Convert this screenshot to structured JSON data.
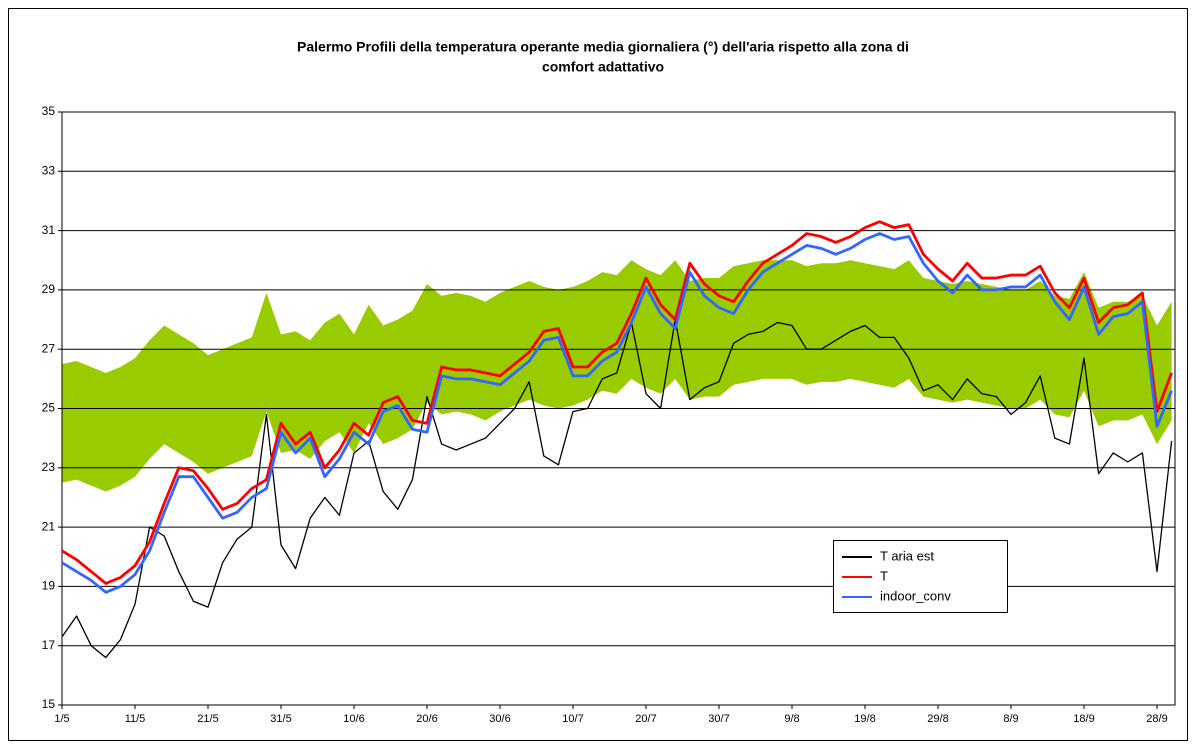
{
  "chart_data": {
    "type": "line",
    "title": [
      "Palermo Profili della temperatura operante media giornaliera (°) dell'aria rispetto alla zona di",
      "comfort adattativo"
    ],
    "categories": [
      "1/5",
      null,
      null,
      null,
      null,
      "11/5",
      null,
      null,
      null,
      null,
      "21/5",
      null,
      null,
      null,
      null,
      "31/5",
      null,
      null,
      null,
      null,
      "10/6",
      null,
      null,
      null,
      null,
      "20/6",
      null,
      null,
      null,
      null,
      "30/6",
      null,
      null,
      null,
      null,
      "10/7",
      null,
      null,
      null,
      null,
      "20/7",
      null,
      null,
      null,
      null,
      "30/7",
      null,
      null,
      null,
      null,
      "9/8",
      null,
      null,
      null,
      null,
      "19/8",
      null,
      null,
      null,
      null,
      "29/8",
      null,
      null,
      null,
      null,
      "8/9",
      null,
      null,
      null,
      null,
      "18/9",
      null,
      null,
      null,
      null,
      "28/9",
      null
    ],
    "band": {
      "color": "#99cc00",
      "upper": [
        26.5,
        26.6,
        26.4,
        26.2,
        26.4,
        26.7,
        27.3,
        27.8,
        27.5,
        27.2,
        26.8,
        27.0,
        27.2,
        27.4,
        28.9,
        27.5,
        27.6,
        27.3,
        27.9,
        28.2,
        27.5,
        28.5,
        27.8,
        28.0,
        28.3,
        29.2,
        28.8,
        28.9,
        28.8,
        28.6,
        28.9,
        29.1,
        29.3,
        29.1,
        29.0,
        29.1,
        29.3,
        29.6,
        29.5,
        30.0,
        29.7,
        29.5,
        30.0,
        29.3,
        29.4,
        29.4,
        29.8,
        29.9,
        30.0,
        30.0,
        30.0,
        29.8,
        29.9,
        29.9,
        30.0,
        29.9,
        29.8,
        29.7,
        30.0,
        29.4,
        29.3,
        29.2,
        29.3,
        29.2,
        29.1,
        29.0,
        29.0,
        29.3,
        28.8,
        28.7,
        29.6,
        28.4,
        28.6,
        28.6,
        28.8,
        27.8,
        28.6
      ],
      "lower": [
        22.5,
        22.6,
        22.4,
        22.2,
        22.4,
        22.7,
        23.3,
        23.8,
        23.5,
        23.2,
        22.8,
        23.0,
        23.2,
        23.4,
        24.9,
        23.5,
        23.6,
        23.3,
        23.9,
        24.2,
        23.5,
        24.5,
        23.8,
        24.0,
        24.3,
        25.2,
        24.8,
        24.9,
        24.8,
        24.6,
        24.9,
        25.1,
        25.3,
        25.1,
        25.0,
        25.1,
        25.3,
        25.6,
        25.5,
        26.0,
        25.7,
        25.5,
        26.0,
        25.3,
        25.4,
        25.4,
        25.8,
        25.9,
        26.0,
        26.0,
        26.0,
        25.8,
        25.9,
        25.9,
        26.0,
        25.9,
        25.8,
        25.7,
        26.0,
        25.4,
        25.3,
        25.2,
        25.3,
        25.2,
        25.1,
        25.0,
        25.0,
        25.3,
        24.8,
        24.7,
        25.6,
        24.4,
        24.6,
        24.6,
        24.8,
        23.8,
        24.6
      ]
    },
    "series": [
      {
        "name": "T aria est",
        "color": "#000000",
        "values": [
          17.3,
          18.0,
          17.0,
          16.6,
          17.2,
          18.4,
          21.0,
          20.7,
          19.5,
          18.5,
          18.3,
          19.8,
          20.6,
          21.0,
          24.8,
          20.4,
          19.6,
          21.3,
          22.0,
          21.4,
          23.5,
          23.9,
          22.2,
          21.6,
          22.6,
          25.4,
          23.8,
          23.6,
          23.8,
          24.0,
          24.5,
          25.0,
          25.9,
          23.4,
          23.1,
          24.9,
          25.0,
          26.0,
          26.2,
          27.9,
          25.5,
          25.0,
          28.0,
          25.3,
          25.7,
          25.9,
          27.2,
          27.5,
          27.6,
          27.9,
          27.8,
          27.0,
          27.0,
          27.3,
          27.6,
          27.8,
          27.4,
          27.4,
          26.7,
          25.6,
          25.8,
          25.3,
          26.0,
          25.5,
          25.4,
          24.8,
          25.2,
          26.1,
          24.0,
          23.8,
          26.7,
          22.8,
          23.5,
          23.2,
          23.5,
          19.5,
          23.9
        ]
      },
      {
        "name": "T",
        "color": "#ff0000",
        "values": [
          20.2,
          19.9,
          19.5,
          19.1,
          19.3,
          19.7,
          20.5,
          21.8,
          23.0,
          22.9,
          22.3,
          21.6,
          21.8,
          22.3,
          22.6,
          24.5,
          23.8,
          24.2,
          23.0,
          23.6,
          24.5,
          24.1,
          25.2,
          25.4,
          24.6,
          24.5,
          26.4,
          26.3,
          26.3,
          26.2,
          26.1,
          26.5,
          26.9,
          27.6,
          27.7,
          26.4,
          26.4,
          26.9,
          27.2,
          28.2,
          29.4,
          28.5,
          28.0,
          29.9,
          29.2,
          28.8,
          28.6,
          29.3,
          29.9,
          30.2,
          30.5,
          30.9,
          30.8,
          30.6,
          30.8,
          31.1,
          31.3,
          31.1,
          31.2,
          30.2,
          29.7,
          29.3,
          29.9,
          29.4,
          29.4,
          29.5,
          29.5,
          29.8,
          28.9,
          28.4,
          29.4,
          27.9,
          28.4,
          28.5,
          28.9,
          24.9,
          26.2
        ]
      },
      {
        "name": "indoor_conv",
        "color": "#3366ff",
        "values": [
          19.8,
          19.5,
          19.2,
          18.8,
          19.0,
          19.4,
          20.2,
          21.5,
          22.7,
          22.7,
          22.0,
          21.3,
          21.5,
          22.0,
          22.3,
          24.2,
          23.5,
          24.0,
          22.7,
          23.3,
          24.2,
          23.8,
          24.9,
          25.1,
          24.3,
          24.2,
          26.1,
          26.0,
          26.0,
          25.9,
          25.8,
          26.2,
          26.6,
          27.3,
          27.4,
          26.1,
          26.1,
          26.6,
          26.9,
          27.9,
          29.1,
          28.2,
          27.7,
          29.6,
          28.8,
          28.4,
          28.2,
          29.0,
          29.6,
          29.9,
          30.2,
          30.5,
          30.4,
          30.2,
          30.4,
          30.7,
          30.9,
          30.7,
          30.8,
          29.9,
          29.3,
          28.9,
          29.5,
          29.0,
          29.0,
          29.1,
          29.1,
          29.5,
          28.6,
          28.0,
          29.1,
          27.5,
          28.1,
          28.2,
          28.6,
          24.4,
          25.6
        ]
      }
    ],
    "ylim": [
      15,
      35
    ],
    "yticks": [
      15,
      17,
      19,
      21,
      23,
      25,
      27,
      29,
      31,
      33,
      35
    ],
    "grid": true
  }
}
